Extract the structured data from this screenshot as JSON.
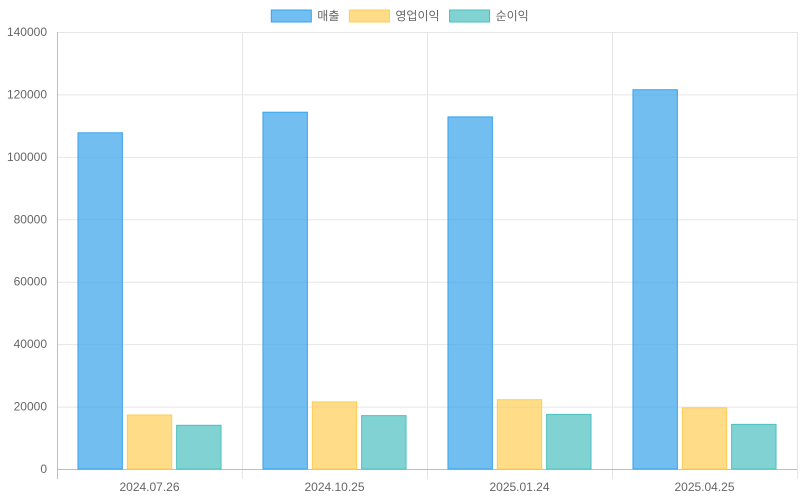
{
  "chart_data": {
    "type": "bar",
    "categories": [
      "2024.07.26",
      "2024.10.25",
      "2025.01.24",
      "2025.04.25"
    ],
    "series": [
      {
        "name": "매출",
        "values": [
          107700,
          114300,
          112800,
          121500
        ],
        "color": "#36a2eb"
      },
      {
        "name": "영업이익",
        "values": [
          17300,
          21500,
          22200,
          19600
        ],
        "color": "#ffcd56"
      },
      {
        "name": "순이익",
        "values": [
          14000,
          17100,
          17500,
          14300
        ],
        "color": "#4bc0c0"
      }
    ],
    "title": "",
    "xlabel": "",
    "ylabel": "",
    "ylim": [
      0,
      140000
    ],
    "yticks": [
      "0",
      "20000",
      "40000",
      "60000",
      "80000",
      "100000",
      "120000",
      "140000"
    ],
    "grid": true,
    "legend_position": "top-center"
  }
}
